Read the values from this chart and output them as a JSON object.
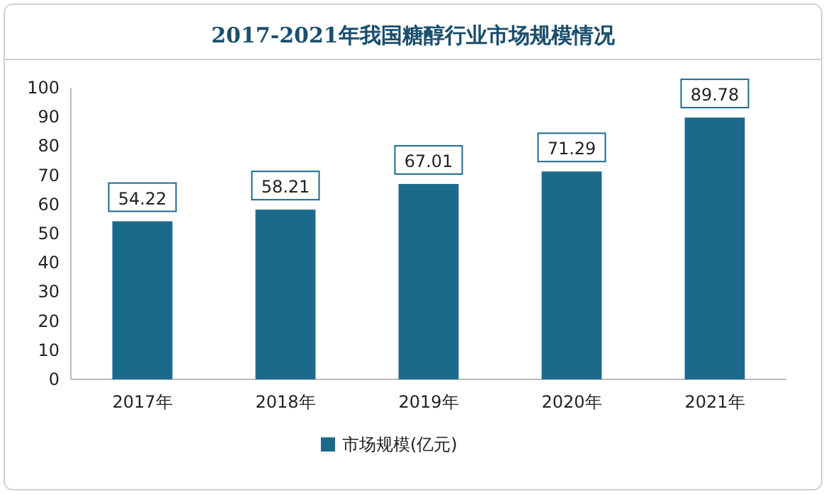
{
  "chart_data": {
    "type": "bar",
    "title": "2017-2021年我国糖醇行业市场规模情况",
    "categories": [
      "2017年",
      "2018年",
      "2019年",
      "2020年",
      "2021年"
    ],
    "series": [
      {
        "name": "市场规模(亿元)",
        "color": "#1b6a8c",
        "values": [
          54.22,
          58.21,
          67.01,
          71.29,
          89.78
        ]
      }
    ],
    "ylim": [
      0,
      100
    ],
    "yticks": [
      0,
      10,
      20,
      30,
      40,
      50,
      60,
      70,
      80,
      90,
      100
    ],
    "data_labels": true,
    "legend": "bottom"
  }
}
